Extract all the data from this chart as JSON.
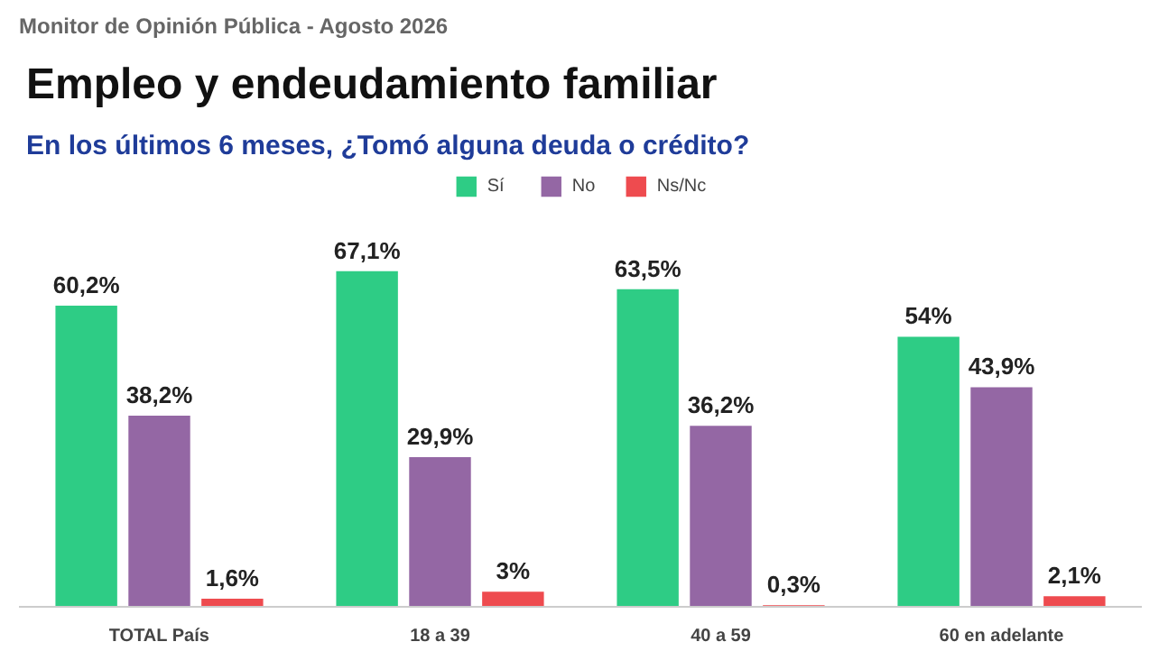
{
  "chart_data": {
    "type": "bar",
    "title": "Empleo y endeudamiento familiar",
    "subtitle": "En los últimos 6 meses, ¿Tomó alguna deuda o crédito?",
    "annotations": [
      "Monitor de Opinión Pública - Agosto 2026"
    ],
    "categories": [
      "TOTAL País",
      "18 a 39",
      "40 a 59",
      "60 en adelante"
    ],
    "series": [
      {
        "name": "Sí",
        "color": "#2ecc85",
        "values": [
          60.2,
          67.1,
          63.5,
          54
        ],
        "value_labels": [
          "60,2%",
          "67,1%",
          "63,5%",
          "54%"
        ]
      },
      {
        "name": "No",
        "color": "#9467a4",
        "values": [
          38.2,
          29.9,
          36.2,
          43.9
        ],
        "value_labels": [
          "38,2%",
          "29,9%",
          "36,2%",
          "43,9%"
        ]
      },
      {
        "name": "Ns/Nc",
        "color": "#ee4b4f",
        "values": [
          1.6,
          3,
          0.3,
          2.1
        ],
        "value_labels": [
          "1,6%",
          "3%",
          "0,3%",
          "2,1%"
        ]
      }
    ],
    "legend": "top"
  }
}
